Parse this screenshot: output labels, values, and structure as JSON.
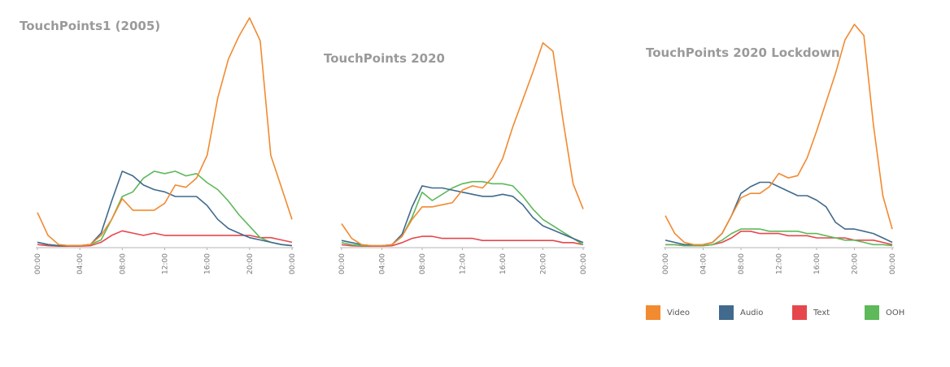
{
  "colors": {
    "Video": "#F28A30",
    "Audio": "#416A8C",
    "Text": "#E6474D",
    "OOH": "#5DB95A"
  },
  "legend": [
    {
      "name": "Video",
      "label": "Video",
      "color": "#F28A30"
    },
    {
      "name": "Audio",
      "label": "Audio",
      "color": "#416A8C"
    },
    {
      "name": "Text",
      "label": "Text",
      "color": "#E6474D"
    },
    {
      "name": "OOH",
      "label": "OOH",
      "color": "#5DB95A"
    }
  ],
  "chart_data": [
    {
      "type": "line",
      "title": "TouchPoints1 (2005)",
      "x": [
        "00:00",
        "01:00",
        "02:00",
        "03:00",
        "04:00",
        "05:00",
        "06:00",
        "07:00",
        "08:00",
        "09:00",
        "10:00",
        "11:00",
        "12:00",
        "13:00",
        "14:00",
        "15:00",
        "16:00",
        "17:00",
        "18:00",
        "19:00",
        "20:00",
        "21:00",
        "22:00",
        "23:00",
        "00:00"
      ],
      "x_ticks": [
        "00:00",
        "04:00",
        "08:00",
        "12:00",
        "16:00",
        "20:00",
        "00:00"
      ],
      "ylim": [
        0,
        100
      ],
      "series": [
        {
          "name": "Video",
          "values": [
            15,
            5,
            1,
            0.5,
            0.5,
            1,
            5,
            12,
            21,
            16,
            16,
            16,
            19,
            27,
            26,
            30,
            40,
            65,
            82,
            92,
            100,
            90,
            40,
            26,
            12
          ]
        },
        {
          "name": "Audio",
          "values": [
            2,
            1,
            0.5,
            0.5,
            0.5,
            1,
            6,
            20,
            33,
            31,
            27,
            25,
            24,
            22,
            22,
            22,
            18,
            12,
            8,
            6,
            4,
            3,
            2,
            1,
            0.5
          ]
        },
        {
          "name": "Text",
          "values": [
            1,
            0.5,
            0.3,
            0.3,
            0.3,
            0.5,
            2,
            5,
            7,
            6,
            5,
            6,
            5,
            5,
            5,
            5,
            5,
            5,
            5,
            5,
            5,
            4,
            4,
            3,
            2
          ]
        },
        {
          "name": "OOH",
          "values": [
            2,
            1,
            0.5,
            0.5,
            0.5,
            1,
            3,
            12,
            22,
            24,
            30,
            33,
            32,
            33,
            31,
            32,
            28,
            25,
            20,
            14,
            9,
            4,
            2,
            1,
            0.5
          ]
        }
      ]
    },
    {
      "type": "line",
      "title": "TouchPoints 2020",
      "x": [
        "00:00",
        "01:00",
        "02:00",
        "03:00",
        "04:00",
        "05:00",
        "06:00",
        "07:00",
        "08:00",
        "09:00",
        "10:00",
        "11:00",
        "12:00",
        "13:00",
        "14:00",
        "15:00",
        "16:00",
        "17:00",
        "18:00",
        "19:00",
        "20:00",
        "21:00",
        "22:00",
        "23:00",
        "00:00"
      ],
      "x_ticks": [
        "00:00",
        "04:00",
        "08:00",
        "12:00",
        "16:00",
        "20:00",
        "00:00"
      ],
      "ylim": [
        0,
        100
      ],
      "series": [
        {
          "name": "Video",
          "values": [
            11,
            4,
            1,
            0.5,
            0.5,
            1,
            5,
            13,
            19,
            19,
            20,
            21,
            27,
            29,
            28,
            33,
            42,
            57,
            70,
            83,
            97,
            93,
            60,
            30,
            18
          ]
        },
        {
          "name": "Audio",
          "values": [
            3,
            2,
            1,
            0.5,
            0.5,
            1,
            6,
            19,
            29,
            28,
            28,
            27,
            26,
            25,
            24,
            24,
            25,
            24,
            20,
            14,
            10,
            8,
            6,
            4,
            2
          ]
        },
        {
          "name": "Text",
          "values": [
            1,
            0.5,
            0.3,
            0.3,
            0.3,
            0.5,
            2,
            4,
            5,
            5,
            4,
            4,
            4,
            4,
            3,
            3,
            3,
            3,
            3,
            3,
            3,
            3,
            2,
            2,
            1
          ]
        },
        {
          "name": "OOH",
          "values": [
            2,
            1,
            0.5,
            0.5,
            0.5,
            1,
            5,
            14,
            26,
            22,
            25,
            28,
            30,
            31,
            31,
            30,
            30,
            29,
            24,
            18,
            13,
            10,
            7,
            4,
            1
          ]
        }
      ]
    },
    {
      "type": "line",
      "title": "TouchPoints 2020 Lockdown",
      "x": [
        "00:00",
        "01:00",
        "02:00",
        "03:00",
        "04:00",
        "05:00",
        "06:00",
        "07:00",
        "08:00",
        "09:00",
        "10:00",
        "11:00",
        "12:00",
        "13:00",
        "14:00",
        "15:00",
        "16:00",
        "17:00",
        "18:00",
        "19:00",
        "20:00",
        "21:00",
        "22:00",
        "23:00",
        "00:00"
      ],
      "x_ticks": [
        "00:00",
        "04:00",
        "08:00",
        "12:00",
        "16:00",
        "20:00",
        "00:00"
      ],
      "ylim": [
        0,
        100
      ],
      "series": [
        {
          "name": "Video",
          "values": [
            14,
            6,
            2,
            1,
            1,
            2,
            6,
            14,
            22,
            24,
            24,
            27,
            33,
            31,
            32,
            40,
            52,
            65,
            78,
            93,
            100,
            95,
            55,
            23,
            8
          ]
        },
        {
          "name": "Audio",
          "values": [
            3,
            2,
            1,
            1,
            1,
            2,
            6,
            14,
            24,
            27,
            29,
            29,
            27,
            25,
            23,
            23,
            21,
            18,
            11,
            8,
            8,
            7,
            6,
            4,
            2
          ]
        },
        {
          "name": "Text",
          "values": [
            1,
            1,
            0.5,
            0.5,
            0.5,
            1,
            2,
            4,
            7,
            7,
            6,
            6,
            6,
            5,
            5,
            5,
            4,
            4,
            4,
            4,
            3,
            3,
            3,
            2,
            1
          ]
        },
        {
          "name": "OOH",
          "values": [
            1,
            1,
            0.5,
            0.5,
            0.5,
            1,
            3,
            6,
            8,
            8,
            8,
            7,
            7,
            7,
            7,
            6,
            6,
            5,
            4,
            3,
            3,
            2,
            1,
            1,
            0.5
          ]
        }
      ]
    }
  ]
}
